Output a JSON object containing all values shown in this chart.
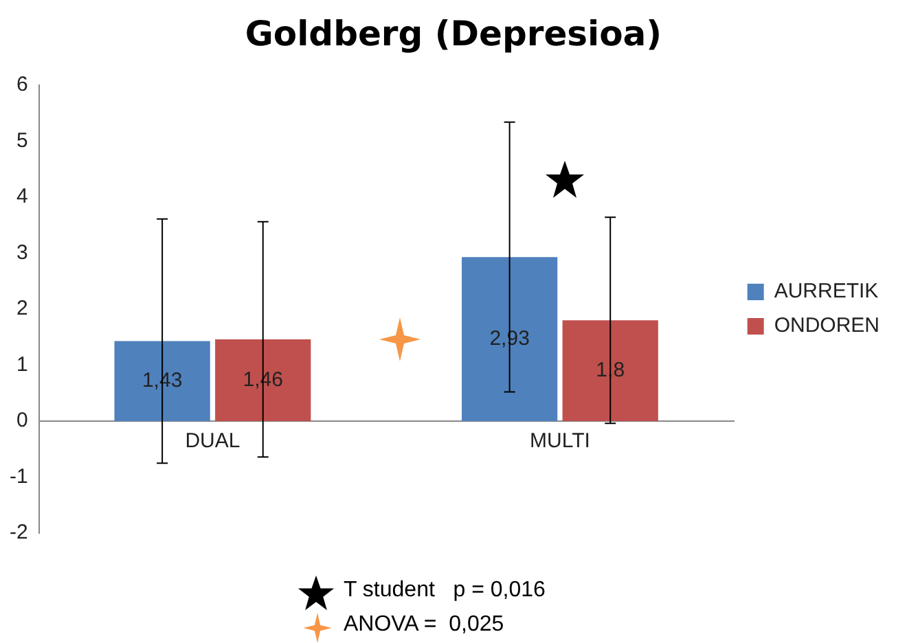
{
  "chart_data": {
    "type": "bar",
    "title": "Goldberg (Depresioa)",
    "categories": [
      "DUAL",
      "MULTI"
    ],
    "series": [
      {
        "name": "AURRETIK",
        "color": "#4f81bd",
        "values": [
          1.43,
          2.93
        ],
        "errors": [
          2.18,
          2.41
        ],
        "value_labels": [
          "1,43",
          "2,93"
        ]
      },
      {
        "name": "ONDOREN",
        "color": "#c0504d",
        "values": [
          1.46,
          1.8
        ],
        "errors": [
          2.1,
          1.84
        ],
        "value_labels": [
          "1,46",
          "1,8"
        ]
      }
    ],
    "ylim": [
      -2,
      6
    ],
    "yticks": [
      -2,
      -1,
      0,
      1,
      2,
      3,
      4,
      5,
      6
    ],
    "grid": false,
    "legend": "right",
    "annotations": [
      "T student   p = 0,016",
      "ANOVA =  0,025"
    ]
  }
}
